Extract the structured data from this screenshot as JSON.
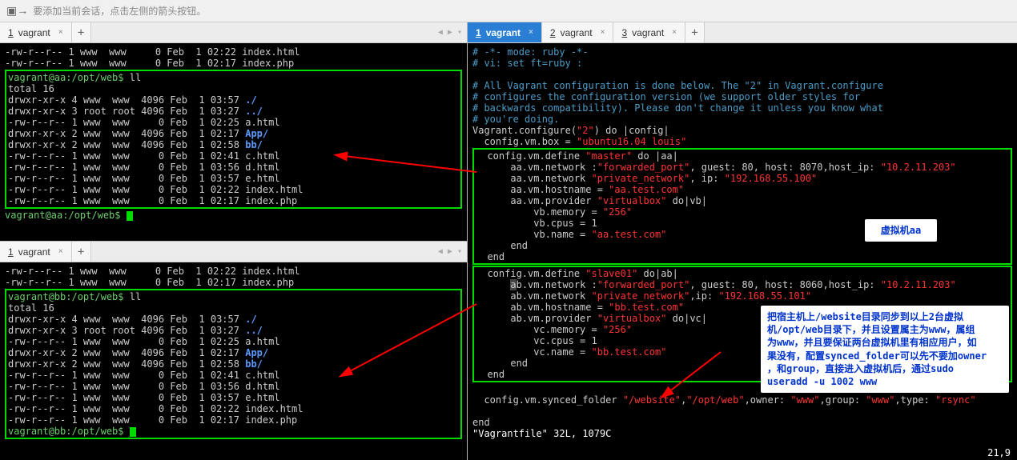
{
  "hint": {
    "text": "要添加当前会话，点击左侧的箭头按钮。"
  },
  "tabs": {
    "left_top": {
      "num": "1",
      "label": "vagrant"
    },
    "left_bot": {
      "num": "1",
      "label": "vagrant"
    },
    "right": [
      {
        "num": "1",
        "label": "vagrant",
        "active": true
      },
      {
        "num": "2",
        "label": "vagrant",
        "active": false
      },
      {
        "num": "3",
        "label": "vagrant",
        "active": false
      }
    ]
  },
  "term_aa": {
    "preamble": [
      "-rw-r--r-- 1 www  www     0 Feb  1 02:22 index.html",
      "-rw-r--r-- 1 www  www     0 Feb  1 02:17 index.php"
    ],
    "prompt1": "vagrant@aa:/opt/web$ ",
    "cmd1": "ll",
    "total": "total 16",
    "rows": [
      {
        "perm": "drwxr-xr-x 4 www  www  4096 Feb  1 03:57 ",
        "name": "./",
        "cls": "c-blu"
      },
      {
        "perm": "drwxr-xr-x 3 root root 4096 Feb  1 03:27 ",
        "name": "../",
        "cls": "c-blu"
      },
      {
        "perm": "-rw-r--r-- 1 www  www     0 Feb  1 02:25 ",
        "name": "a.html",
        "cls": ""
      },
      {
        "perm": "drwxr-xr-x 2 www  www  4096 Feb  1 02:17 ",
        "name": "App/",
        "cls": "c-blu"
      },
      {
        "perm": "drwxr-xr-x 2 www  www  4096 Feb  1 02:58 ",
        "name": "bb/",
        "cls": "c-blu"
      },
      {
        "perm": "-rw-r--r-- 1 www  www     0 Feb  1 02:41 ",
        "name": "c.html",
        "cls": ""
      },
      {
        "perm": "-rw-r--r-- 1 www  www     0 Feb  1 03:56 ",
        "name": "d.html",
        "cls": ""
      },
      {
        "perm": "-rw-r--r-- 1 www  www     0 Feb  1 03:57 ",
        "name": "e.html",
        "cls": ""
      },
      {
        "perm": "-rw-r--r-- 1 www  www     0 Feb  1 02:22 ",
        "name": "index.html",
        "cls": ""
      },
      {
        "perm": "-rw-r--r-- 1 www  www     0 Feb  1 02:17 ",
        "name": "index.php",
        "cls": ""
      }
    ],
    "prompt2": "vagrant@aa:/opt/web$ "
  },
  "term_bb": {
    "preamble": [
      "-rw-r--r-- 1 www  www     0 Feb  1 02:22 index.html",
      "-rw-r--r-- 1 www  www     0 Feb  1 02:17 index.php"
    ],
    "prompt1": "vagrant@bb:/opt/web$ ",
    "cmd1": "ll",
    "total": "total 16",
    "prompt2": "vagrant@bb:/opt/web$ "
  },
  "vagrantfile": {
    "header": [
      "# -*- mode: ruby -*-",
      "# vi: set ft=ruby :",
      "",
      "# All Vagrant configuration is done below. The \"2\" in Vagrant.configure",
      "# configures the configuration version (we support older styles for",
      "# backwards compatibility). Please don't change it unless you know what",
      "# you're doing."
    ],
    "configure_open": {
      "pre": "Vagrant.configure(",
      "arg": "\"2\"",
      "post": ") do |config|"
    },
    "box_line": {
      "pre": "  config.vm.box = ",
      "val": "\"ubuntu16.04 louis\""
    },
    "master": {
      "def": {
        "pre": "  config.vm.define ",
        "name": "\"master\"",
        "post": " do |aa|"
      },
      "fwd": {
        "pre": "      aa.vm.network :",
        "kw": "\"forwarded_port\"",
        "mid": ", guest: 80, host: 8070,host_ip: ",
        "ip": "\"10.2.11.203\""
      },
      "prv": {
        "pre": "      aa.vm.network ",
        "kw": "\"private_network\"",
        "mid": ", ip: ",
        "ip": "\"192.168.55.100\""
      },
      "host": {
        "pre": "      aa.vm.hostname = ",
        "val": "\"aa.test.com\""
      },
      "prov": {
        "pre": "      aa.vm.provider ",
        "kw": "\"virtualbox\"",
        "post": " do|vb|"
      },
      "mem": {
        "pre": "          vb.memory = ",
        "val": "\"256\""
      },
      "cpus": "          vb.cpus = 1",
      "name": {
        "pre": "          vb.name = ",
        "val": "\"aa.test.com\""
      },
      "end1": "      end",
      "end2": "  end"
    },
    "slave": {
      "def": {
        "pre": "  config.vm.define ",
        "name": "\"slave01\"",
        "post": " do|ab|"
      },
      "fwd": {
        "pre": "      ab",
        "dim": "b.vm.network :",
        "kw": "\"forwarded_port\"",
        "mid": ", guest: 80, host: 8060,host_ip: ",
        "ip": "\"10.2.11.203\""
      },
      "prv": {
        "pre": "      ab.vm.network ",
        "kw": "\"private_network\"",
        "mid": ",ip: ",
        "ip": "\"192.168.55.101\""
      },
      "host": {
        "pre": "      ab.vm.hostname = ",
        "val": "\"bb.test.com\""
      },
      "prov": {
        "pre": "      ab.vm.provider ",
        "kw": "\"virtualbox\"",
        "post": " do|vc|"
      },
      "mem": {
        "pre": "          vc.memory = ",
        "val": "\"256\""
      },
      "cpus": "          vc.cpus = 1",
      "name": {
        "pre": "          vc.name = ",
        "val": "\"bb.test.com\""
      },
      "end1": "      end",
      "end2": "  end"
    },
    "synced": {
      "pre": "  config.vm.synced_folder ",
      "p1": "\"/website\"",
      "c1": ",",
      "p2": "\"/opt/web\"",
      "c2": ",owner: ",
      "p3": "\"www\"",
      "c3": ",group: ",
      "p4": "\"www\"",
      "c4": ",type: ",
      "p5": "\"rsync\""
    },
    "end": "end",
    "status": "\"Vagrantfile\" 32L, 1079C",
    "cursor_pos": "21,9"
  },
  "labels": {
    "label_master": "虚拟机aa",
    "label_slave": "把宿主机上/website目录同步到以上2台虚拟\n机/opt/web目录下，并且设置属主为www，属组\n为www，并且要保证两台虚拟机里有相应用户，如\n果没有，配置synced_folder可以先不要加owner\n，和group，直接进入虚拟机后，通过sudo\nuseradd -u 1002 www"
  },
  "colors": {
    "arrow": "#ff0000",
    "green_box": "#00dc00"
  }
}
